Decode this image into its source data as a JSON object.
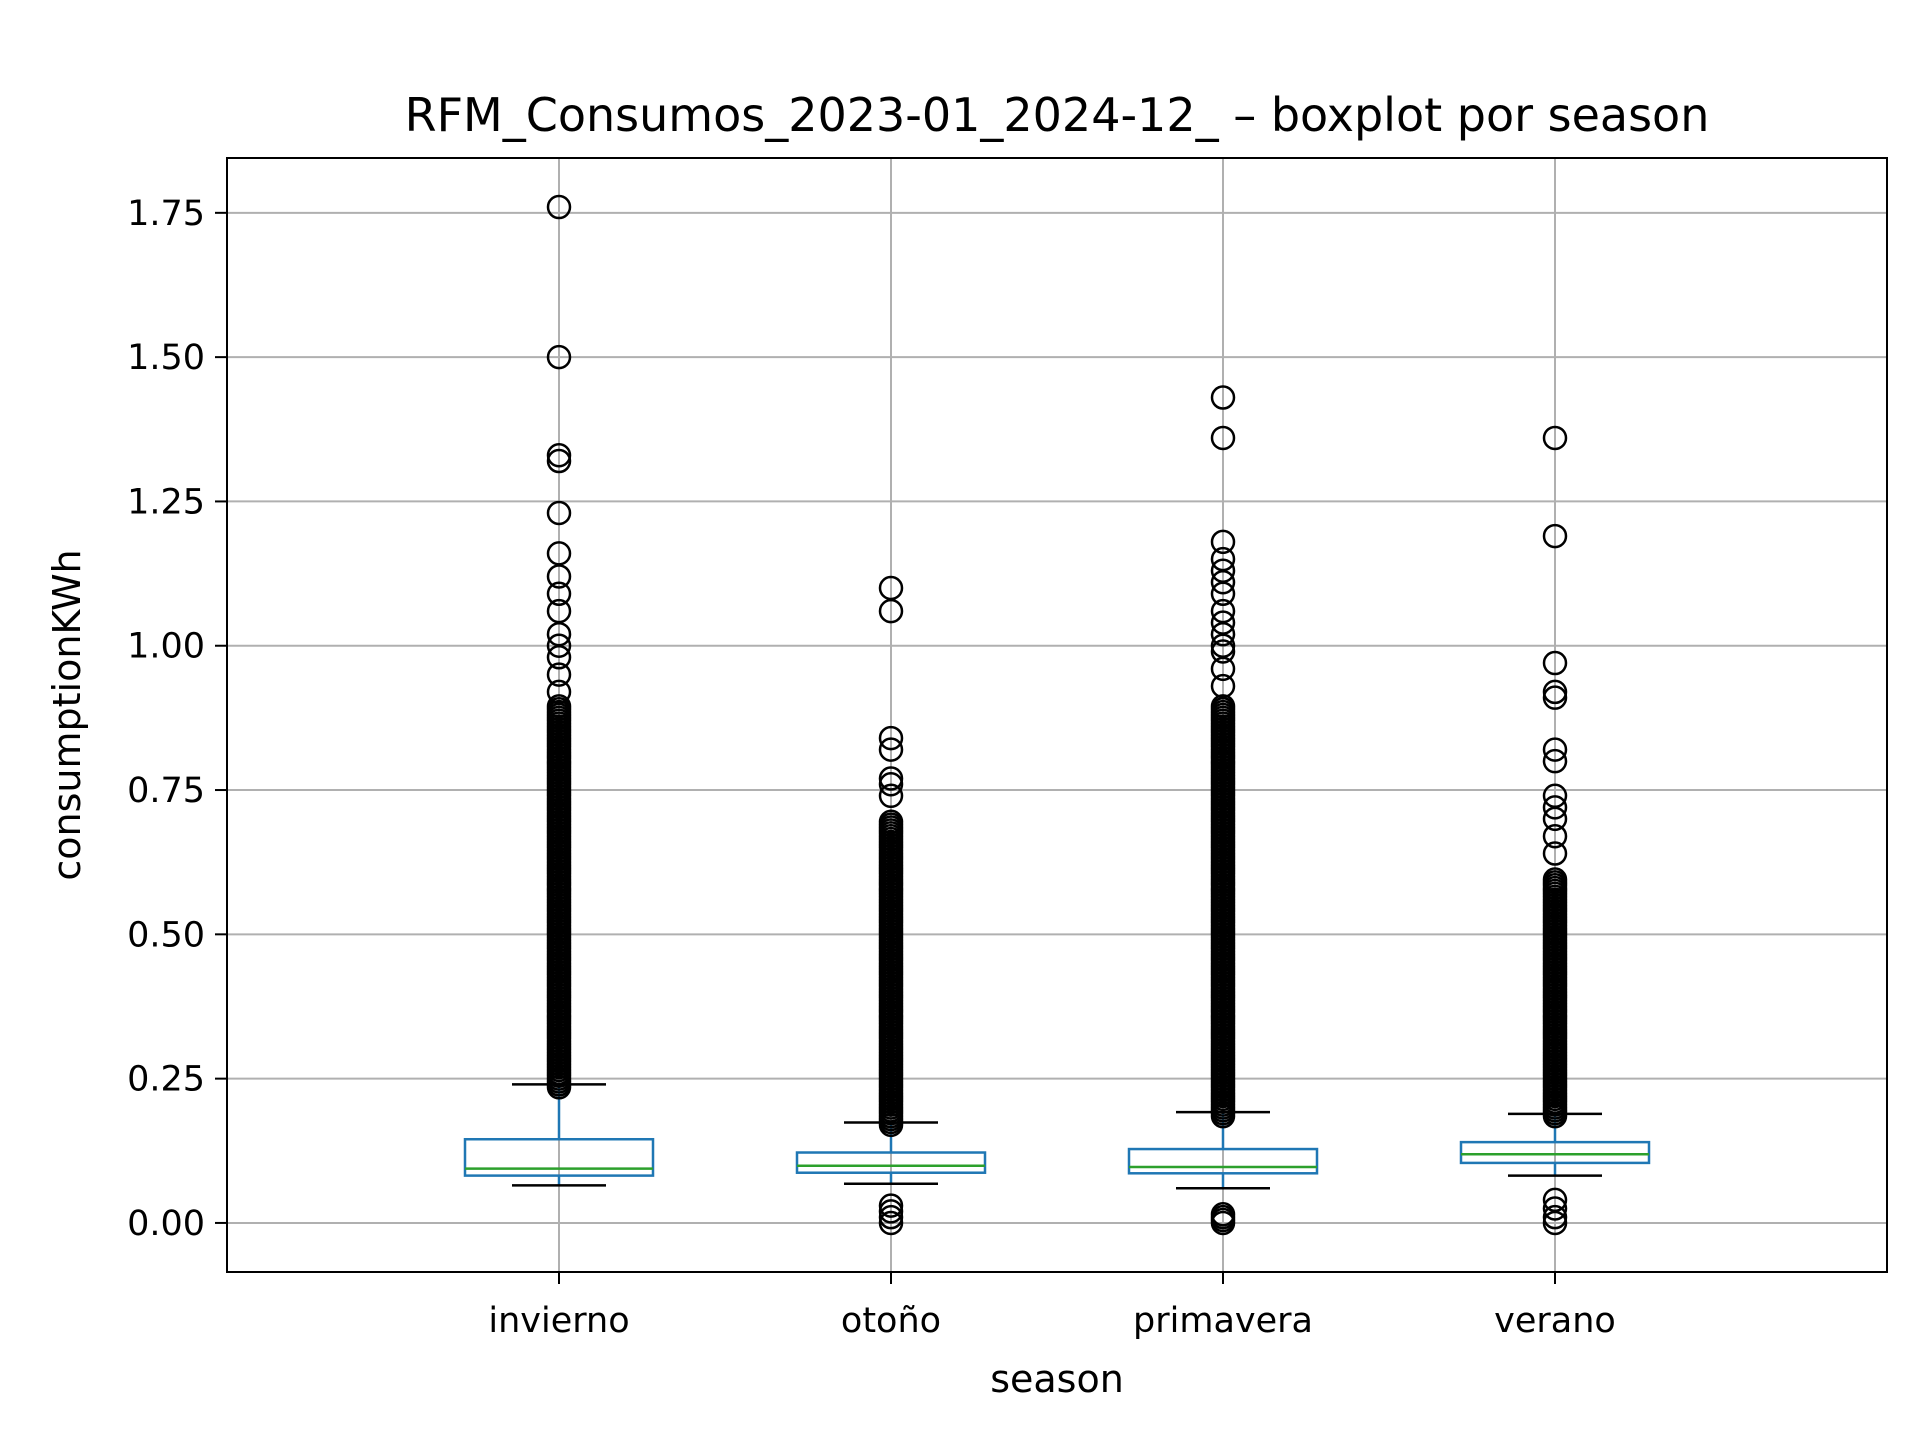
{
  "chart_data": {
    "type": "box",
    "title": "RFM_Consumos_2023-01_2024-12_ – boxplot por season",
    "xlabel": "season",
    "ylabel": "consumptionKWh",
    "ylim": [
      -0.085,
      1.845
    ],
    "yticks": [
      "0.00",
      "0.25",
      "0.50",
      "0.75",
      "1.00",
      "1.25",
      "1.50",
      "1.75"
    ],
    "grid": true,
    "categories": [
      "invierno",
      "otoño",
      "primavera",
      "verano"
    ],
    "series": [
      {
        "category": "invierno",
        "whisker_low": 0.065,
        "q1": 0.082,
        "median": 0.094,
        "q3": 0.145,
        "whisker_high": 0.24,
        "outlier_range": [
          0.235,
          0.9
        ],
        "outliers": [
          0.92,
          0.95,
          0.98,
          1.0,
          1.02,
          1.06,
          1.09,
          1.12,
          1.16,
          1.23,
          1.32,
          1.33,
          1.5,
          1.76
        ]
      },
      {
        "category": "otoño",
        "whisker_low": 0.068,
        "q1": 0.087,
        "median": 0.099,
        "q3": 0.122,
        "whisker_high": 0.174,
        "outlier_range": [
          0.17,
          0.7
        ],
        "outliers": [
          0.0,
          0.01,
          0.02,
          0.03,
          0.74,
          0.76,
          0.77,
          0.82,
          0.84,
          1.06,
          1.1
        ]
      },
      {
        "category": "primavera",
        "whisker_low": 0.06,
        "q1": 0.086,
        "median": 0.097,
        "q3": 0.128,
        "whisker_high": 0.192,
        "outlier_range": [
          0.185,
          0.9
        ],
        "outliers": [
          0.0,
          0.005,
          0.01,
          0.015,
          0.93,
          0.96,
          0.99,
          1.0,
          1.02,
          1.04,
          1.06,
          1.09,
          1.11,
          1.13,
          1.15,
          1.18,
          1.36,
          1.43
        ]
      },
      {
        "category": "verano",
        "whisker_low": 0.082,
        "q1": 0.104,
        "median": 0.119,
        "q3": 0.14,
        "whisker_high": 0.189,
        "outlier_range": [
          0.185,
          0.6
        ],
        "outliers": [
          0.0,
          0.01,
          0.025,
          0.04,
          0.64,
          0.67,
          0.7,
          0.72,
          0.74,
          0.8,
          0.82,
          0.91,
          0.92,
          0.97,
          1.19,
          1.36
        ]
      }
    ],
    "colors": {
      "box": "#1f77b4",
      "median": "#2ca02c",
      "whisker": "#1f77b4",
      "cap": "#000000",
      "flier": "#000000",
      "grid": "#b0b0b0",
      "frame": "#000000"
    }
  }
}
